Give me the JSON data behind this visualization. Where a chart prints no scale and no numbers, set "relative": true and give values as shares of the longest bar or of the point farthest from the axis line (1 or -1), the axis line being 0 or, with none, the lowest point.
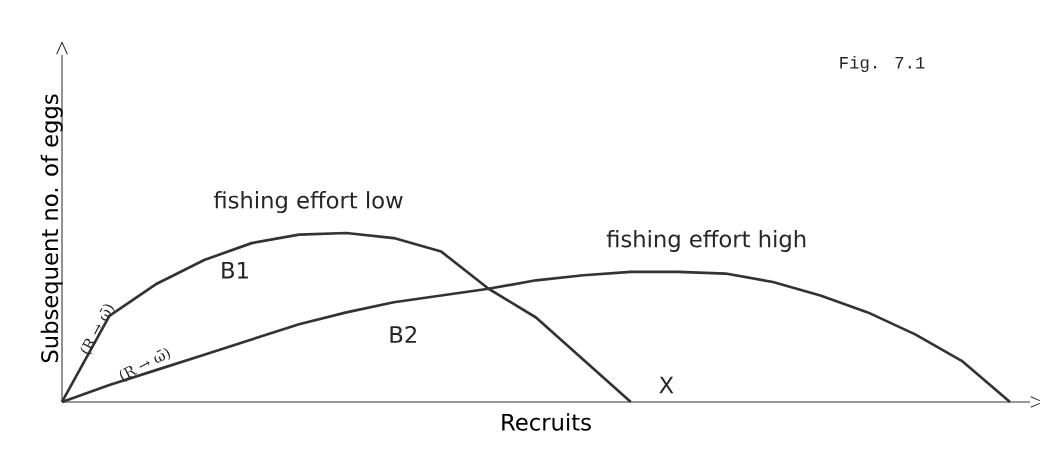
{
  "chart_data": {
    "type": "line",
    "relative": true,
    "xlabel": "Recruits",
    "ylabel": "Subsequent no. of eggs",
    "categories": [
      null,
      null,
      null,
      null,
      null,
      null,
      null,
      null,
      null,
      null,
      null,
      null,
      null,
      null,
      null,
      null,
      null,
      null,
      null,
      null,
      null
    ],
    "series": [
      {
        "name": "fishing effort low",
        "color": "#333333",
        "values": [
          0,
          0.51,
          0.7,
          0.84,
          0.94,
          0.99,
          1,
          0.97,
          0.89,
          0.67,
          0.5,
          0.25,
          0,
          null,
          null,
          null,
          null,
          null,
          null,
          null,
          null
        ]
      },
      {
        "name": "fishing effort high",
        "color": "#333333",
        "values": [
          0,
          0.1,
          0.19,
          0.28,
          0.37,
          0.46,
          0.53,
          0.59,
          0.63,
          0.67,
          0.72,
          0.75,
          0.77,
          0.77,
          0.76,
          0.71,
          0.63,
          0.53,
          0.4,
          0.24,
          0
        ]
      }
    ],
    "annotations": [
      "Fig. 7.1",
      "B1",
      "B2",
      "X",
      "(R → ω̄)",
      "(R → ω̄)"
    ],
    "line_style": "solid"
  }
}
